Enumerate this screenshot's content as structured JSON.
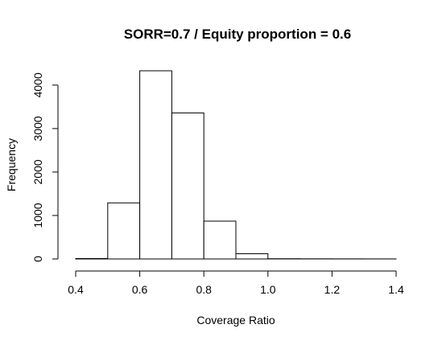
{
  "chart_data": {
    "type": "bar",
    "title": "SORR=0.7 / Equity proportion = 0.6",
    "xlabel": "Coverage Ratio",
    "ylabel": "Frequency",
    "bins": [
      {
        "start": 0.4,
        "end": 0.5,
        "value": 10
      },
      {
        "start": 0.5,
        "end": 0.6,
        "value": 1290
      },
      {
        "start": 0.6,
        "end": 0.7,
        "value": 4330
      },
      {
        "start": 0.7,
        "end": 0.8,
        "value": 3360
      },
      {
        "start": 0.8,
        "end": 0.9,
        "value": 870
      },
      {
        "start": 0.9,
        "end": 1.0,
        "value": 120
      },
      {
        "start": 1.0,
        "end": 1.1,
        "value": 5
      },
      {
        "start": 1.1,
        "end": 1.2,
        "value": 3
      },
      {
        "start": 1.2,
        "end": 1.3,
        "value": 2
      },
      {
        "start": 1.3,
        "end": 1.4,
        "value": 1
      }
    ],
    "xlim": [
      0.4,
      1.4
    ],
    "ylim": [
      0,
      4330
    ],
    "xticks": [
      {
        "value": 0.4,
        "label": "0.4"
      },
      {
        "value": 0.6,
        "label": "0.6"
      },
      {
        "value": 0.8,
        "label": "0.8"
      },
      {
        "value": 1.0,
        "label": "1.0"
      },
      {
        "value": 1.2,
        "label": "1.2"
      },
      {
        "value": 1.4,
        "label": "1.4"
      }
    ],
    "yticks": [
      {
        "value": 0,
        "label": "0"
      },
      {
        "value": 1000,
        "label": "1000"
      },
      {
        "value": 2000,
        "label": "2000"
      },
      {
        "value": 3000,
        "label": "3000"
      },
      {
        "value": 4000,
        "label": "4000"
      }
    ],
    "grid": false,
    "colors": {
      "bar_fill": "#ffffff",
      "bar_stroke": "#000000",
      "axis": "#000000"
    }
  }
}
